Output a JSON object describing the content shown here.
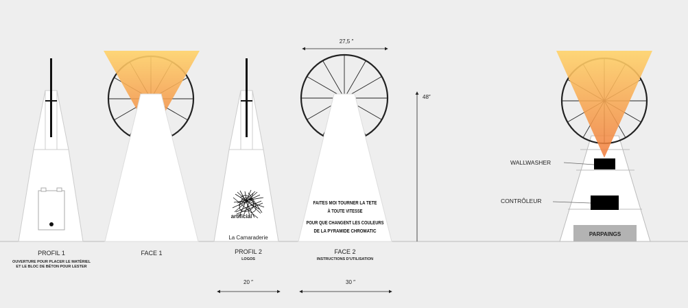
{
  "views": {
    "profil1": {
      "title": "PROFIL 1",
      "subtitle_line1": "OUVERTURE POUR PLACER LE MATÉRIEL",
      "subtitle_line2": "ET LE BLOC DE BÉTON POUR LESTER"
    },
    "face1": {
      "title": "FACE 1"
    },
    "profil2": {
      "title": "PROFIL 2",
      "subtitle": "LOGOS",
      "logo_text": "artificial",
      "brand_text": "La Camaraderie"
    },
    "face2": {
      "title": "FACE 2",
      "subtitle": "INSTRUCTIONS D'UTILISATION",
      "instructions": [
        "FAITES MOI TOURNER LA TETE",
        "À TOUTE VITESSE",
        "POUR QUE CHANGENT LES COULEURS",
        "DE LA PYRAMIDE CHROMATIC"
      ]
    },
    "section": {
      "wallwasher": "WALLWASHER",
      "controleur": "CONTRÔLEUR",
      "parpaings": "PARPAINGS"
    }
  },
  "dimensions": {
    "wheel_width": "27,5 ″",
    "height": "48″",
    "profile_depth": "20 ″",
    "face_width": "30 ″"
  },
  "colors": {
    "background": "#eeeeee",
    "panel": "#ffffff",
    "beam_top": "#ffd36a",
    "beam_bottom": "#f07a3a",
    "parpaings": "#b3b3b3"
  }
}
